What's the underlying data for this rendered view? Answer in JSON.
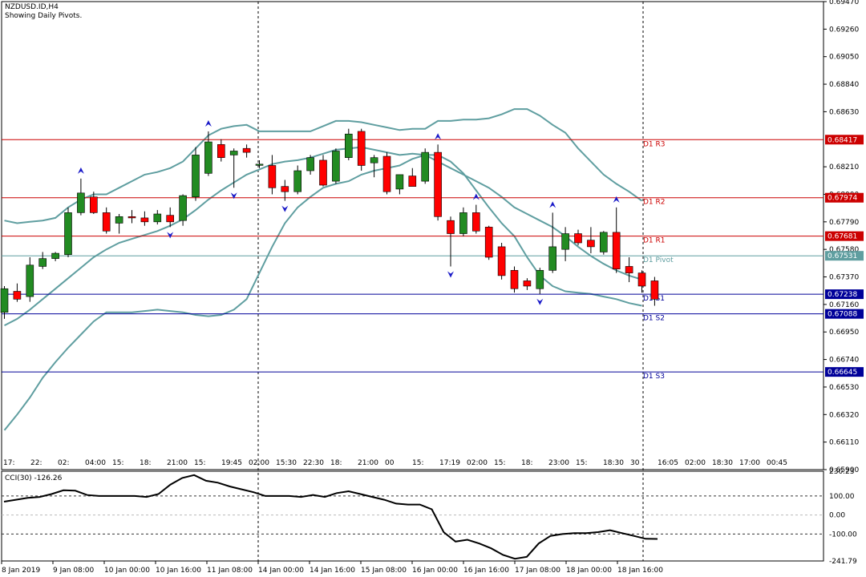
{
  "header": {
    "symbol": "NZDUSD.ID,H4",
    "subtitle": "Showing Daily Pivots."
  },
  "price_axis": {
    "ticks": [
      "0.69470",
      "0.69260",
      "0.69050",
      "0.68840",
      "0.68630",
      "0.68210",
      "0.68000",
      "0.67790",
      "0.67580",
      "0.67370",
      "0.67160",
      "0.66950",
      "0.66740",
      "0.66530",
      "0.66320",
      "0.66110",
      "0.65900"
    ]
  },
  "pivots": [
    {
      "name": "D1 R3",
      "price": "0.68417",
      "value": 0.68417,
      "color": "#cc0000"
    },
    {
      "name": "D1 R2",
      "price": "0.67974",
      "value": 0.67974,
      "color": "#cc0000"
    },
    {
      "name": "D1 R1",
      "price": "0.67681",
      "value": 0.67681,
      "color": "#cc0000"
    },
    {
      "name": "D1 Pivot",
      "price": "0.67531",
      "value": 0.67531,
      "color": "#5f9ea0"
    },
    {
      "name": "D1 S1",
      "price": "0.67238",
      "value": 0.67238,
      "color": "#000099"
    },
    {
      "name": "D1 S2",
      "price": "0.67088",
      "value": 0.67088,
      "color": "#000099"
    },
    {
      "name": "D1 S3",
      "price": "0.66645",
      "value": 0.66645,
      "color": "#000099"
    }
  ],
  "time_axis": [
    "8 Jan 2019",
    "9 Jan 08:00",
    "10 Jan 00:00",
    "10 Jan 16:00",
    "11 Jan 08:00",
    "14 Jan 00:00",
    "14 Jan 16:00",
    "15 Jan 08:00",
    "16 Jan 00:00",
    "16 Jan 16:00",
    "17 Jan 08:00",
    "18 Jan 00:00",
    "18 Jan 16:00"
  ],
  "session_labels": [
    "17:",
    "22:",
    "02:",
    "04:00",
    "15:",
    "18:",
    "21:00",
    "15:",
    "19:45",
    "02:00",
    "15:30",
    "22:30",
    "18:",
    "21:00",
    "00",
    "15:",
    "17:19",
    "02:00",
    "15:",
    "18:",
    "23:00",
    "15:",
    "18:30",
    "30",
    "16:05",
    "02:00",
    "18:30",
    "17:00",
    "00:45"
  ],
  "cci": {
    "label": "CCI(30) -126.26",
    "ticks": [
      "230.23",
      "100.00",
      "0.00",
      "-100.00",
      "-241.79"
    ],
    "levels": [
      230.23,
      100,
      0,
      -100,
      -241.79
    ],
    "values": [
      70,
      80,
      90,
      95,
      110,
      130,
      128,
      105,
      100,
      100,
      100,
      100,
      95,
      110,
      160,
      195,
      210,
      180,
      170,
      150,
      135,
      120,
      100,
      100,
      100,
      95,
      105,
      95,
      115,
      125,
      110,
      95,
      80,
      60,
      55,
      55,
      30,
      -90,
      -140,
      -130,
      -150,
      -175,
      -210,
      -230,
      -220,
      -150,
      -110,
      -100,
      -95,
      -95,
      -90,
      -80,
      -95,
      -110,
      -125,
      -126
    ]
  },
  "chart_data": {
    "type": "candlestick",
    "symbol": "NZDUSD.ID",
    "timeframe": "H4",
    "ylim": [
      0.659,
      0.6947
    ],
    "candles": [
      {
        "o": 0.671,
        "h": 0.673,
        "l": 0.6705,
        "c": 0.6728
      },
      {
        "o": 0.6726,
        "h": 0.6732,
        "l": 0.6718,
        "c": 0.672
      },
      {
        "o": 0.6722,
        "h": 0.6752,
        "l": 0.6718,
        "c": 0.6746
      },
      {
        "o": 0.6745,
        "h": 0.6756,
        "l": 0.6743,
        "c": 0.6751
      },
      {
        "o": 0.6751,
        "h": 0.6756,
        "l": 0.6749,
        "c": 0.6755
      },
      {
        "o": 0.6754,
        "h": 0.679,
        "l": 0.6752,
        "c": 0.6786
      },
      {
        "o": 0.6786,
        "h": 0.6812,
        "l": 0.6784,
        "c": 0.6801
      },
      {
        "o": 0.6798,
        "h": 0.6802,
        "l": 0.6785,
        "c": 0.6786
      },
      {
        "o": 0.6786,
        "h": 0.679,
        "l": 0.677,
        "c": 0.6772
      },
      {
        "o": 0.6778,
        "h": 0.6785,
        "l": 0.677,
        "c": 0.6783
      },
      {
        "o": 0.6783,
        "h": 0.6788,
        "l": 0.6778,
        "c": 0.6782
      },
      {
        "o": 0.6782,
        "h": 0.6787,
        "l": 0.6776,
        "c": 0.6779
      },
      {
        "o": 0.6779,
        "h": 0.6788,
        "l": 0.6777,
        "c": 0.6785
      },
      {
        "o": 0.6784,
        "h": 0.679,
        "l": 0.6775,
        "c": 0.6779
      },
      {
        "o": 0.678,
        "h": 0.68,
        "l": 0.6776,
        "c": 0.6799
      },
      {
        "o": 0.6798,
        "h": 0.6836,
        "l": 0.6795,
        "c": 0.683
      },
      {
        "o": 0.6816,
        "h": 0.6848,
        "l": 0.6814,
        "c": 0.684
      },
      {
        "o": 0.6838,
        "h": 0.6842,
        "l": 0.6825,
        "c": 0.6828
      },
      {
        "o": 0.683,
        "h": 0.6835,
        "l": 0.6805,
        "c": 0.6833
      },
      {
        "o": 0.6835,
        "h": 0.6838,
        "l": 0.6828,
        "c": 0.6832
      },
      {
        "o": 0.6823,
        "h": 0.6826,
        "l": 0.682,
        "c": 0.6823
      },
      {
        "o": 0.6822,
        "h": 0.683,
        "l": 0.68,
        "c": 0.6805
      },
      {
        "o": 0.6806,
        "h": 0.6811,
        "l": 0.6795,
        "c": 0.6802
      },
      {
        "o": 0.6802,
        "h": 0.6822,
        "l": 0.68,
        "c": 0.6818
      },
      {
        "o": 0.6818,
        "h": 0.683,
        "l": 0.6815,
        "c": 0.6828
      },
      {
        "o": 0.6826,
        "h": 0.683,
        "l": 0.6806,
        "c": 0.6807
      },
      {
        "o": 0.681,
        "h": 0.6835,
        "l": 0.6808,
        "c": 0.6833
      },
      {
        "o": 0.6828,
        "h": 0.685,
        "l": 0.6826,
        "c": 0.6846
      },
      {
        "o": 0.6848,
        "h": 0.685,
        "l": 0.6818,
        "c": 0.6822
      },
      {
        "o": 0.6824,
        "h": 0.683,
        "l": 0.6813,
        "c": 0.6828
      },
      {
        "o": 0.6829,
        "h": 0.6832,
        "l": 0.68,
        "c": 0.6802
      },
      {
        "o": 0.6804,
        "h": 0.6815,
        "l": 0.68,
        "c": 0.6815
      },
      {
        "o": 0.6814,
        "h": 0.682,
        "l": 0.6808,
        "c": 0.6806
      },
      {
        "o": 0.681,
        "h": 0.6835,
        "l": 0.6808,
        "c": 0.6832
      },
      {
        "o": 0.6832,
        "h": 0.6838,
        "l": 0.678,
        "c": 0.6783
      },
      {
        "o": 0.678,
        "h": 0.6783,
        "l": 0.6745,
        "c": 0.677
      },
      {
        "o": 0.677,
        "h": 0.679,
        "l": 0.6768,
        "c": 0.6786
      },
      {
        "o": 0.6786,
        "h": 0.6792,
        "l": 0.677,
        "c": 0.6772
      },
      {
        "o": 0.6775,
        "h": 0.6776,
        "l": 0.675,
        "c": 0.6752
      },
      {
        "o": 0.676,
        "h": 0.6763,
        "l": 0.6735,
        "c": 0.6738
      },
      {
        "o": 0.6742,
        "h": 0.6745,
        "l": 0.6725,
        "c": 0.6728
      },
      {
        "o": 0.6734,
        "h": 0.6736,
        "l": 0.6727,
        "c": 0.673
      },
      {
        "o": 0.6728,
        "h": 0.6744,
        "l": 0.6724,
        "c": 0.6742
      },
      {
        "o": 0.6742,
        "h": 0.6786,
        "l": 0.674,
        "c": 0.676
      },
      {
        "o": 0.6758,
        "h": 0.6775,
        "l": 0.6749,
        "c": 0.677
      },
      {
        "o": 0.677,
        "h": 0.6773,
        "l": 0.6761,
        "c": 0.6763
      },
      {
        "o": 0.6765,
        "h": 0.6775,
        "l": 0.6755,
        "c": 0.676
      },
      {
        "o": 0.6756,
        "h": 0.6772,
        "l": 0.6754,
        "c": 0.6771
      },
      {
        "o": 0.6771,
        "h": 0.679,
        "l": 0.674,
        "c": 0.6743
      },
      {
        "o": 0.6745,
        "h": 0.6752,
        "l": 0.6733,
        "c": 0.674
      },
      {
        "o": 0.674,
        "h": 0.6742,
        "l": 0.6725,
        "c": 0.673
      },
      {
        "o": 0.6734,
        "h": 0.6737,
        "l": 0.6715,
        "c": 0.672
      }
    ],
    "bollinger": {
      "upper": [
        0.678,
        0.6778,
        0.6779,
        0.678,
        0.6782,
        0.679,
        0.6796,
        0.68,
        0.68,
        0.6805,
        0.681,
        0.6815,
        0.6817,
        0.682,
        0.6825,
        0.6835,
        0.6845,
        0.685,
        0.6852,
        0.6853,
        0.6848,
        0.6848,
        0.6848,
        0.6848,
        0.6848,
        0.6852,
        0.6856,
        0.6856,
        0.6855,
        0.6853,
        0.6851,
        0.6849,
        0.685,
        0.685,
        0.6856,
        0.6856,
        0.6857,
        0.6857,
        0.6858,
        0.6861,
        0.6865,
        0.6865,
        0.686,
        0.6853,
        0.6847,
        0.6835,
        0.6825,
        0.6815,
        0.6808,
        0.6802,
        0.6795
      ],
      "middle": [
        0.67,
        0.6705,
        0.6712,
        0.672,
        0.6728,
        0.6736,
        0.6744,
        0.6752,
        0.6758,
        0.6763,
        0.6766,
        0.6769,
        0.6772,
        0.6776,
        0.6781,
        0.6788,
        0.6796,
        0.6803,
        0.6809,
        0.6815,
        0.6819,
        0.6823,
        0.6825,
        0.6826,
        0.6828,
        0.6831,
        0.6834,
        0.6835,
        0.6836,
        0.6834,
        0.6832,
        0.683,
        0.6831,
        0.683,
        0.6825,
        0.682,
        0.6815,
        0.681,
        0.6805,
        0.6798,
        0.679,
        0.6785,
        0.678,
        0.6775,
        0.6768,
        0.676,
        0.6753,
        0.6747,
        0.6742,
        0.6738,
        0.6735
      ],
      "lower": [
        0.662,
        0.6632,
        0.6645,
        0.666,
        0.6672,
        0.6683,
        0.6693,
        0.6703,
        0.671,
        0.671,
        0.671,
        0.6711,
        0.6712,
        0.6711,
        0.671,
        0.6708,
        0.6707,
        0.6708,
        0.6712,
        0.672,
        0.674,
        0.676,
        0.6778,
        0.679,
        0.6798,
        0.6805,
        0.6808,
        0.681,
        0.6815,
        0.6818,
        0.682,
        0.6822,
        0.6827,
        0.683,
        0.683,
        0.6825,
        0.6816,
        0.6803,
        0.679,
        0.6778,
        0.6768,
        0.6752,
        0.6738,
        0.673,
        0.6726,
        0.6725,
        0.6724,
        0.6722,
        0.672,
        0.6717,
        0.6715
      ]
    },
    "colors": {
      "bull": "#228b22",
      "bear": "#ff0000",
      "bollinger": "#5f9ea0",
      "fractal": "#1a1ac8"
    }
  }
}
